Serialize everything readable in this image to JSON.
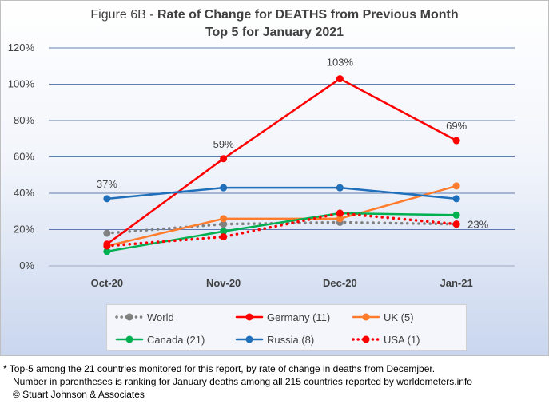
{
  "title": {
    "prefix": "Figure 6B - ",
    "main": "Rate of Change for DEATHS from Previous Month",
    "line2": "Top 5 for January 2021"
  },
  "footnote": {
    "line1": "* Top-5 among the 21 countries monitored for this report, by rate of change in deaths from Decemjber.",
    "line2": "Number in parentheses is ranking for January deaths among all 215 countries reported by worldometers.info",
    "line3": "© Stuart Johnson & Associates"
  },
  "chart_data": {
    "type": "line",
    "categories": [
      "Oct-20",
      "Nov-20",
      "Dec-20",
      "Jan-21"
    ],
    "ylim": [
      0,
      120
    ],
    "yticks": [
      0,
      20,
      40,
      60,
      80,
      100,
      120
    ],
    "ytick_labels": [
      "0%",
      "20%",
      "40%",
      "60%",
      "80%",
      "100%",
      "120%"
    ],
    "grid": true,
    "legend_position": "bottom",
    "series": [
      {
        "name": "World",
        "values": [
          18,
          23,
          24,
          23
        ],
        "color": "#808080",
        "style": "dotted"
      },
      {
        "name": "Germany (11)",
        "values": [
          12,
          59,
          103,
          69
        ],
        "color": "#ff0000",
        "style": "solid"
      },
      {
        "name": "UK (5)",
        "values": [
          11,
          26,
          26,
          44
        ],
        "color": "#ff7c2c",
        "style": "solid"
      },
      {
        "name": "Canada (21)",
        "values": [
          8,
          19,
          29,
          28
        ],
        "color": "#00b050",
        "style": "solid"
      },
      {
        "name": "Russia (8)",
        "values": [
          37,
          43,
          43,
          37
        ],
        "color": "#1f6fba",
        "style": "solid"
      },
      {
        "name": "USA (1)",
        "values": [
          11,
          16,
          29,
          23
        ],
        "color": "#ff0000",
        "style": "dotted"
      }
    ],
    "annotations": [
      {
        "series": "Russia (8)",
        "index": 0,
        "text": "37%"
      },
      {
        "series": "Germany (11)",
        "index": 1,
        "text": "59%"
      },
      {
        "series": "Germany (11)",
        "index": 2,
        "text": "103%"
      },
      {
        "series": "Germany (11)",
        "index": 3,
        "text": "69%"
      },
      {
        "series": "USA (1)",
        "index": 3,
        "text": "23%"
      }
    ]
  }
}
